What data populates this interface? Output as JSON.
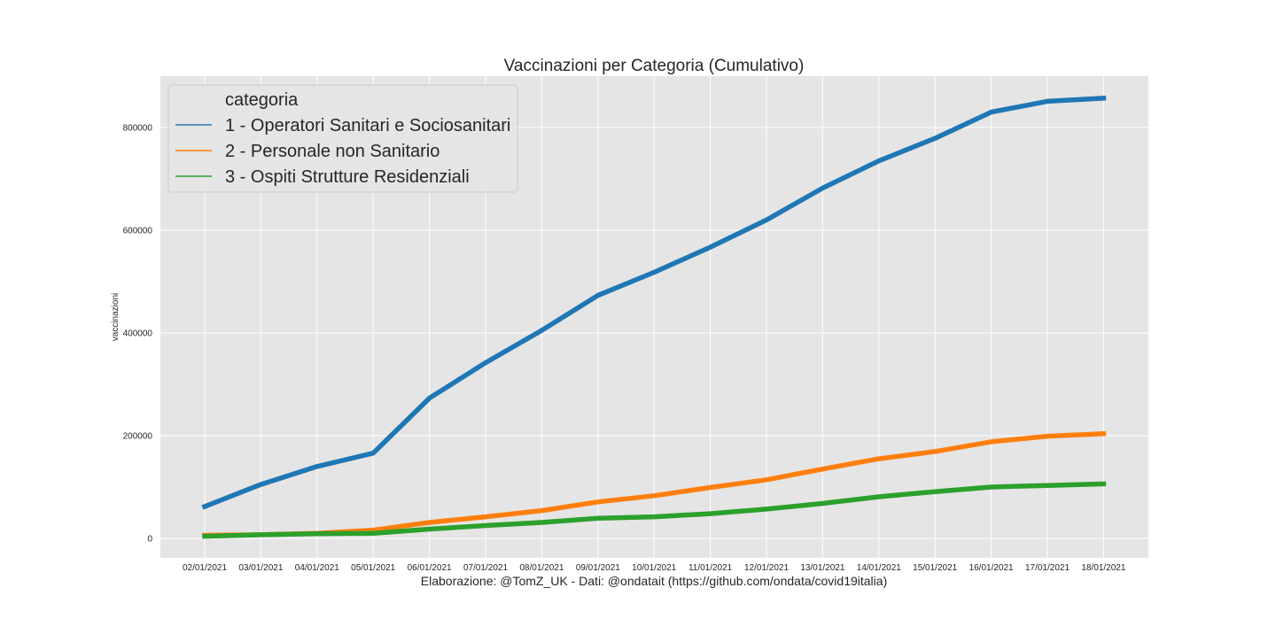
{
  "chart_data": {
    "type": "line",
    "title": "Vaccinazioni per Categoria (Cumulativo)",
    "xlabel": "Elaborazione: @TomZ_UK - Dati: @ondatait (https://github.com/ondata/covid19italia)",
    "ylabel": "vaccinazioni",
    "categories": [
      "02/01/2021",
      "03/01/2021",
      "04/01/2021",
      "05/01/2021",
      "06/01/2021",
      "07/01/2021",
      "08/01/2021",
      "09/01/2021",
      "10/01/2021",
      "11/01/2021",
      "12/01/2021",
      "13/01/2021",
      "14/01/2021",
      "15/01/2021",
      "16/01/2021",
      "17/01/2021",
      "18/01/2021"
    ],
    "yticks": [
      "0",
      "200000",
      "400000",
      "600000",
      "800000"
    ],
    "ylim": [
      -38000,
      900000
    ],
    "grid": true,
    "legend": {
      "title": "categoria",
      "placement": "top-left"
    },
    "series": [
      {
        "name": "1 - Operatori Sanitari e Sociosanitari",
        "color": "#1f77b4",
        "values": [
          62000,
          105000,
          140000,
          166000,
          273000,
          342000,
          405000,
          473000,
          518000,
          567000,
          620000,
          682000,
          735000,
          779000,
          830000,
          851000,
          857000
        ]
      },
      {
        "name": "2 - Personale non Sanitario",
        "color": "#ff7f0e",
        "values": [
          6000,
          7000,
          10000,
          16000,
          31000,
          42000,
          54000,
          71000,
          83000,
          99000,
          114000,
          135000,
          155000,
          169000,
          188000,
          199000,
          204000
        ]
      },
      {
        "name": "3 - Ospiti Strutture Residenziali",
        "color": "#2ca02c",
        "values": [
          4000,
          7000,
          9000,
          10000,
          18000,
          25000,
          31000,
          39000,
          42000,
          48000,
          57000,
          68000,
          81000,
          91000,
          100000,
          103000,
          106000
        ]
      }
    ]
  }
}
